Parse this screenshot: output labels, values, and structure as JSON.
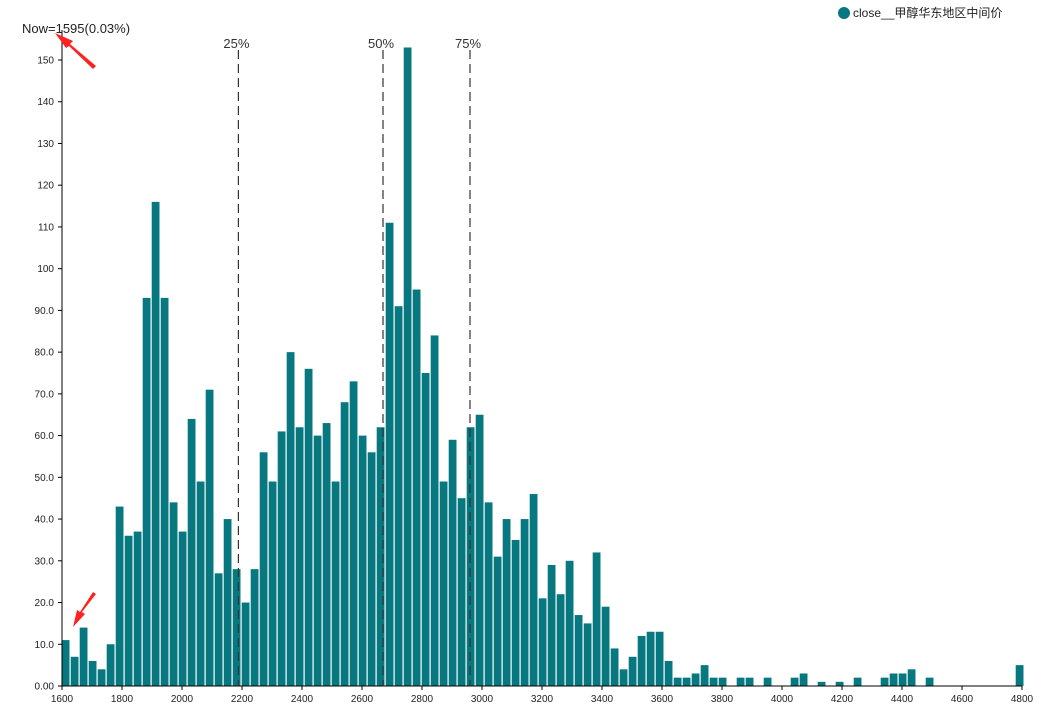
{
  "chart_data": {
    "type": "bar",
    "title": "",
    "xlabel": "",
    "ylabel": "",
    "xlim": [
      1600,
      4800
    ],
    "ylim": [
      0,
      155
    ],
    "x_ticks": [
      "1600",
      "1800",
      "2000",
      "2200",
      "2400",
      "2600",
      "2800",
      "3000",
      "3200",
      "3400",
      "3600",
      "3800",
      "4000",
      "4200",
      "4400",
      "4600",
      "4800"
    ],
    "y_ticks": [
      "0.00",
      "10.0",
      "20.0",
      "30.0",
      "40.0",
      "50.0",
      "60.0",
      "70.0",
      "80.0",
      "90.0",
      "100",
      "110",
      "120",
      "130",
      "140",
      "150"
    ],
    "series": [
      {
        "name": "close__甲醇华东地区中间价",
        "color": "#087880",
        "bins": [
          {
            "x": 1612,
            "v": 11
          },
          {
            "x": 1642,
            "v": 7
          },
          {
            "x": 1672,
            "v": 14
          },
          {
            "x": 1702,
            "v": 6
          },
          {
            "x": 1732,
            "v": 4
          },
          {
            "x": 1762,
            "v": 10
          },
          {
            "x": 1792,
            "v": 43
          },
          {
            "x": 1822,
            "v": 36
          },
          {
            "x": 1852,
            "v": 37
          },
          {
            "x": 1882,
            "v": 93
          },
          {
            "x": 1912,
            "v": 116
          },
          {
            "x": 1942,
            "v": 93
          },
          {
            "x": 1972,
            "v": 44
          },
          {
            "x": 2002,
            "v": 37
          },
          {
            "x": 2032,
            "v": 64
          },
          {
            "x": 2062,
            "v": 49
          },
          {
            "x": 2092,
            "v": 71
          },
          {
            "x": 2122,
            "v": 27
          },
          {
            "x": 2152,
            "v": 40
          },
          {
            "x": 2182,
            "v": 28
          },
          {
            "x": 2212,
            "v": 20
          },
          {
            "x": 2242,
            "v": 28
          },
          {
            "x": 2272,
            "v": 56
          },
          {
            "x": 2302,
            "v": 49
          },
          {
            "x": 2332,
            "v": 61
          },
          {
            "x": 2362,
            "v": 80
          },
          {
            "x": 2392,
            "v": 62
          },
          {
            "x": 2422,
            "v": 76
          },
          {
            "x": 2452,
            "v": 60
          },
          {
            "x": 2482,
            "v": 63
          },
          {
            "x": 2512,
            "v": 49
          },
          {
            "x": 2542,
            "v": 68
          },
          {
            "x": 2572,
            "v": 73
          },
          {
            "x": 2602,
            "v": 60
          },
          {
            "x": 2632,
            "v": 56
          },
          {
            "x": 2662,
            "v": 62
          },
          {
            "x": 2692,
            "v": 111
          },
          {
            "x": 2722,
            "v": 91
          },
          {
            "x": 2752,
            "v": 153
          },
          {
            "x": 2782,
            "v": 95
          },
          {
            "x": 2812,
            "v": 75
          },
          {
            "x": 2842,
            "v": 84
          },
          {
            "x": 2872,
            "v": 49
          },
          {
            "x": 2902,
            "v": 59
          },
          {
            "x": 2932,
            "v": 45
          },
          {
            "x": 2962,
            "v": 62
          },
          {
            "x": 2992,
            "v": 65
          },
          {
            "x": 3022,
            "v": 44
          },
          {
            "x": 3052,
            "v": 31
          },
          {
            "x": 3082,
            "v": 40
          },
          {
            "x": 3112,
            "v": 35
          },
          {
            "x": 3142,
            "v": 40
          },
          {
            "x": 3172,
            "v": 46
          },
          {
            "x": 3202,
            "v": 21
          },
          {
            "x": 3232,
            "v": 29
          },
          {
            "x": 3262,
            "v": 22
          },
          {
            "x": 3292,
            "v": 30
          },
          {
            "x": 3322,
            "v": 17
          },
          {
            "x": 3352,
            "v": 15
          },
          {
            "x": 3382,
            "v": 32
          },
          {
            "x": 3412,
            "v": 19
          },
          {
            "x": 3442,
            "v": 9
          },
          {
            "x": 3472,
            "v": 4
          },
          {
            "x": 3502,
            "v": 7
          },
          {
            "x": 3532,
            "v": 12
          },
          {
            "x": 3562,
            "v": 13
          },
          {
            "x": 3592,
            "v": 13
          },
          {
            "x": 3622,
            "v": 6
          },
          {
            "x": 3652,
            "v": 2
          },
          {
            "x": 3682,
            "v": 2
          },
          {
            "x": 3712,
            "v": 3
          },
          {
            "x": 3742,
            "v": 5
          },
          {
            "x": 3772,
            "v": 2
          },
          {
            "x": 3802,
            "v": 2
          },
          {
            "x": 3862,
            "v": 2
          },
          {
            "x": 3892,
            "v": 2
          },
          {
            "x": 3952,
            "v": 2
          },
          {
            "x": 4042,
            "v": 2
          },
          {
            "x": 4072,
            "v": 3
          },
          {
            "x": 4132,
            "v": 1
          },
          {
            "x": 4192,
            "v": 1
          },
          {
            "x": 4252,
            "v": 2
          },
          {
            "x": 4342,
            "v": 2
          },
          {
            "x": 4372,
            "v": 3
          },
          {
            "x": 4402,
            "v": 3
          },
          {
            "x": 4432,
            "v": 4
          },
          {
            "x": 4492,
            "v": 2
          },
          {
            "x": 4792,
            "v": 5
          }
        ]
      }
    ],
    "percentiles": [
      {
        "label": "25%",
        "x": 2188
      },
      {
        "label": "50%",
        "x": 2670
      },
      {
        "label": "75%",
        "x": 2960
      }
    ],
    "now": {
      "label": "Now=1595(0.03%)",
      "x": 1595
    },
    "legend_position": "top-right",
    "grid": false
  }
}
